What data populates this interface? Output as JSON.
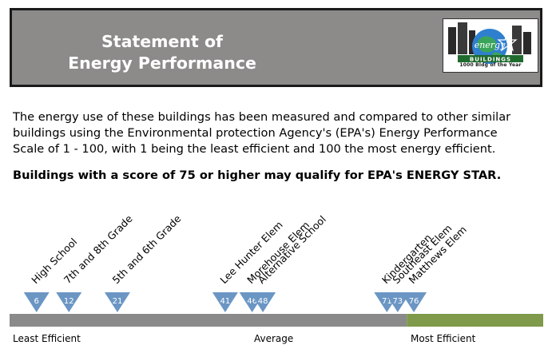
{
  "header": {
    "title_line1": "Statement of",
    "title_line2": "Energy Performance",
    "logo_text": "1000 Bldg of the Year"
  },
  "intro": {
    "line1": "The energy use of these buildings has been measured and compared to other similar",
    "line2": "buildings using the Environmental protection Agency's (EPA's) Energy Performance",
    "line3": "Scale of 1 - 100, with 1 being the least efficient and 100 the most energy efficient."
  },
  "qualify_text": "Buildings with a score of 75 or higher may qualify for EPA's ENERGY STAR.",
  "colors": {
    "header_bg": "#8c8b8a",
    "marker": "#6b96c4",
    "bar_gray": "#8a8a8a",
    "bar_green": "#7f9a4a"
  },
  "scale": {
    "min": 1,
    "max": 100,
    "green_start": 75,
    "labels": {
      "least": "Least Efficient",
      "average": "Average",
      "most": "Most Efficient"
    }
  },
  "chart_data": {
    "type": "scatter",
    "buildings": [
      {
        "name": "High School",
        "score": 6
      },
      {
        "name": "7th and 8th Grade",
        "score": 12
      },
      {
        "name": "5th and 6th Grade",
        "score": 21
      },
      {
        "name": "Lee Hunter Elem",
        "score": 41
      },
      {
        "name": "Morehouse Elem",
        "score": 46
      },
      {
        "name": "Alternative School",
        "score": 48
      },
      {
        "name": "Kindergarten",
        "score": 71
      },
      {
        "name": "Southeast Elem",
        "score": 73
      },
      {
        "name": "Matthews Elem",
        "score": 76
      }
    ]
  }
}
